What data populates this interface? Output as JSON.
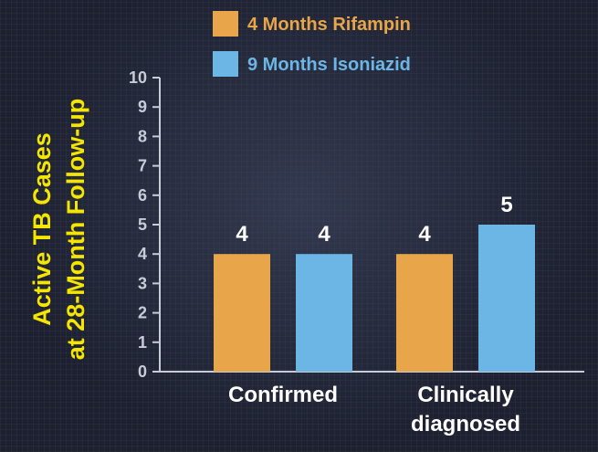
{
  "chart_data": {
    "type": "bar",
    "categories": [
      [
        "Confirmed"
      ],
      [
        "Clinically",
        "diagnosed"
      ]
    ],
    "series": [
      {
        "name": "4 Months Rifampin",
        "values": [
          4,
          4
        ],
        "color": "#e8a54a"
      },
      {
        "name": "9 Months Isoniazid",
        "values": [
          4,
          5
        ],
        "color": "#6cb6e6"
      }
    ],
    "ylabel": [
      "Active TB Cases",
      "at 28-Month Follow-up"
    ],
    "ylim": [
      0,
      10
    ],
    "yticks": [
      0,
      1,
      2,
      3,
      4,
      5,
      6,
      7,
      8,
      9,
      10
    ],
    "legend_position": "top",
    "grid": false
  },
  "colors": {
    "axis": "#c8ccd8",
    "text": "#ffffff",
    "ylabel": "#f5e600",
    "legend_rifampin_text": "#e8a54a",
    "legend_isoniazid_text": "#6cb6e6"
  }
}
